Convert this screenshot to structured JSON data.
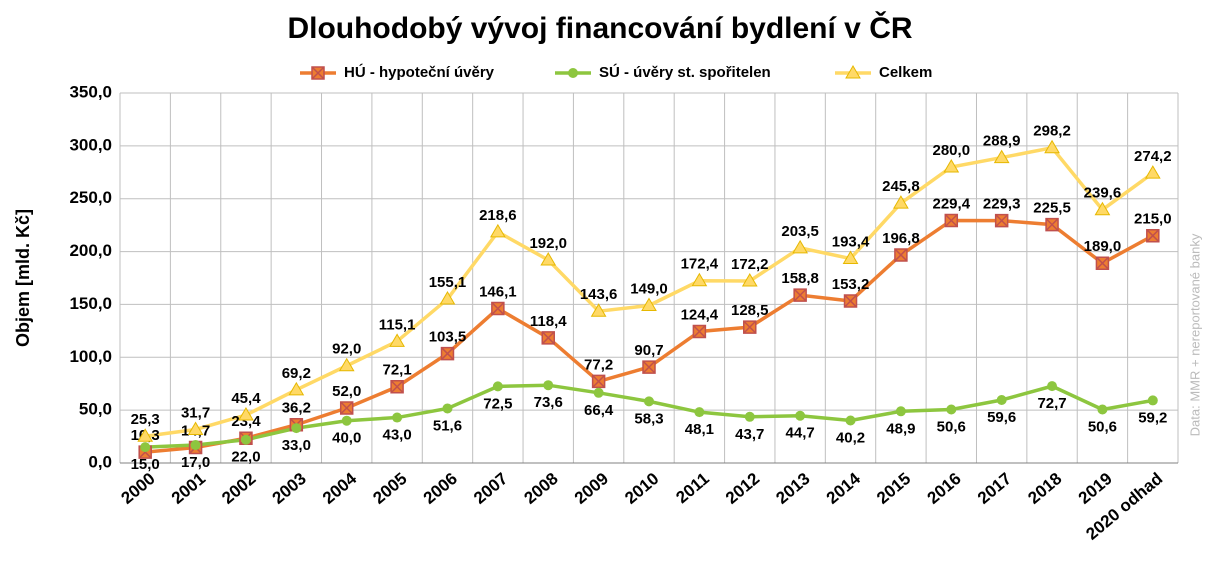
{
  "chart_data": {
    "type": "line",
    "title": "Dlouhodobý vývoj financování bydlení v ČR",
    "y_label": "Objem [mld. Kč]",
    "source": "Data: MMR + nereportované banky",
    "categories": [
      "2000",
      "2001",
      "2002",
      "2003",
      "2004",
      "2005",
      "2006",
      "2007",
      "2008",
      "2009",
      "2010",
      "2011",
      "2012",
      "2013",
      "2014",
      "2015",
      "2016",
      "2017",
      "2018",
      "2019",
      "2020 odhad"
    ],
    "series": [
      {
        "name": "HÚ - hypoteční úvěry",
        "color": "#ed7d31",
        "marker": "x-square",
        "values": [
          10.3,
          14.7,
          23.4,
          36.2,
          52.0,
          72.1,
          103.5,
          146.1,
          118.4,
          77.2,
          90.7,
          124.4,
          128.5,
          158.8,
          153.2,
          196.8,
          229.4,
          229.3,
          225.5,
          189.0,
          215.0
        ],
        "value_labels": [
          "10,3",
          "14,7",
          "23,4",
          "36,2",
          "52,0",
          "72,1",
          "103,5",
          "146,1",
          "118,4",
          "77,2",
          "90,7",
          "124,4",
          "128,5",
          "158,8",
          "153,2",
          "196,8",
          "229,4",
          "229,3",
          "225,5",
          "189,0",
          "215,0"
        ]
      },
      {
        "name": "SÚ - úvěry st. spořitelen",
        "color": "#8dc63f",
        "marker": "circle",
        "values": [
          15.0,
          17.0,
          22.0,
          33.0,
          40.0,
          43.0,
          51.6,
          72.5,
          73.6,
          66.4,
          58.3,
          48.1,
          43.7,
          44.7,
          40.2,
          48.9,
          50.6,
          59.6,
          72.7,
          50.6,
          59.2
        ],
        "value_labels": [
          "15,0",
          "17,0",
          "22,0",
          "33,0",
          "40,0",
          "43,0",
          "51,6",
          "72,5",
          "73,6",
          "66,4",
          "58,3",
          "48,1",
          "43,7",
          "44,7",
          "40,2",
          "48,9",
          "50,6",
          "59,6",
          "72,7",
          "50,6",
          "59,2"
        ]
      },
      {
        "name": "Celkem",
        "color": "#ffd966",
        "marker": "triangle",
        "values": [
          25.3,
          31.7,
          45.4,
          69.2,
          92.0,
          115.1,
          155.1,
          218.6,
          192.0,
          143.6,
          149.0,
          172.4,
          172.2,
          203.5,
          193.4,
          245.8,
          280.0,
          288.9,
          298.2,
          239.6,
          274.2
        ],
        "value_labels": [
          "25,3",
          "31,7",
          "45,4",
          "69,2",
          "92,0",
          "115,1",
          "155,1",
          "218,6",
          "192,0",
          "143,6",
          "149,0",
          "172,4",
          "172,2",
          "203,5",
          "193,4",
          "245,8",
          "280,0",
          "288,9",
          "298,2",
          "239,6",
          "274,2"
        ]
      }
    ],
    "ylim": [
      0,
      350
    ],
    "yticks": [
      {
        "value": 0,
        "label": "0,0"
      },
      {
        "value": 50,
        "label": "50,0"
      },
      {
        "value": 100,
        "label": "100,0"
      },
      {
        "value": 150,
        "label": "150,0"
      },
      {
        "value": 200,
        "label": "200,0"
      },
      {
        "value": 250,
        "label": "250,0"
      },
      {
        "value": 300,
        "label": "300,0"
      },
      {
        "value": 350,
        "label": "350,0"
      }
    ],
    "grid": true,
    "legend": "top"
  }
}
